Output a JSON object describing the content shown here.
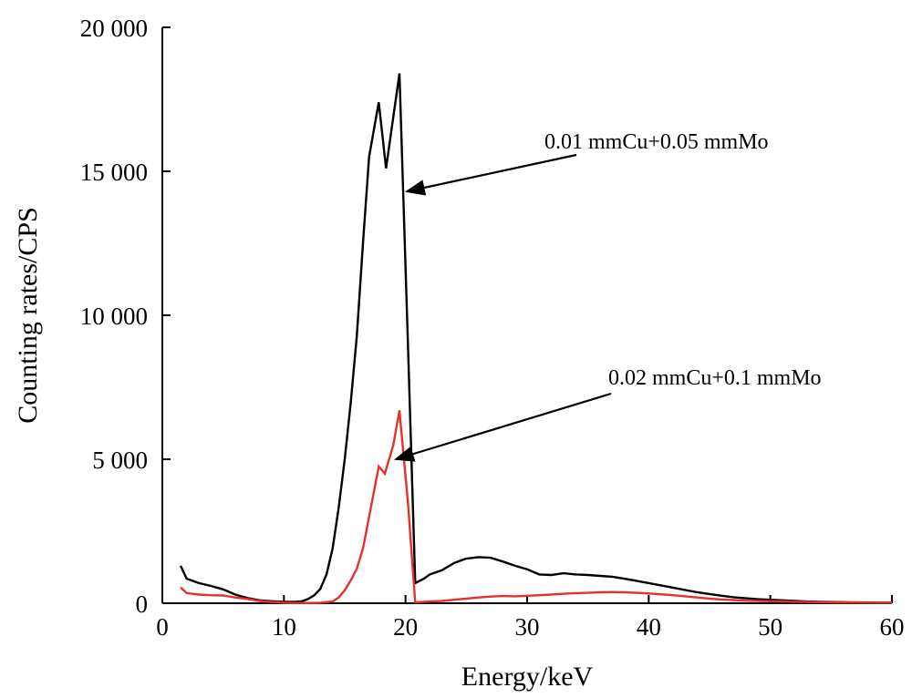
{
  "chart_data": {
    "type": "line",
    "xlabel": "Energy/keV",
    "ylabel": "Counting rates/CPS",
    "xlim": [
      0,
      60
    ],
    "ylim": [
      0,
      20000
    ],
    "x_ticks": [
      0,
      10,
      20,
      30,
      40,
      50,
      60
    ],
    "y_ticks": [
      0,
      5000,
      10000,
      15000,
      20000
    ],
    "x_tick_labels": [
      "0",
      "10",
      "20",
      "30",
      "40",
      "50",
      "60"
    ],
    "y_tick_labels": [
      "0",
      "5 000",
      "10 000",
      "15 000",
      "20 000"
    ],
    "grid": false,
    "series": [
      {
        "color": "#000000",
        "points": [
          [
            1.5,
            1300
          ],
          [
            2,
            850
          ],
          [
            3,
            700
          ],
          [
            4,
            600
          ],
          [
            5,
            480
          ],
          [
            6,
            300
          ],
          [
            7,
            180
          ],
          [
            8,
            100
          ],
          [
            9,
            70
          ],
          [
            10,
            50
          ],
          [
            11,
            50
          ],
          [
            11.5,
            70
          ],
          [
            12,
            150
          ],
          [
            12.5,
            280
          ],
          [
            13,
            500
          ],
          [
            13.5,
            1000
          ],
          [
            14,
            1900
          ],
          [
            14.5,
            3300
          ],
          [
            15,
            5000
          ],
          [
            15.5,
            7000
          ],
          [
            16,
            9300
          ],
          [
            16.5,
            12500
          ],
          [
            17,
            15500
          ],
          [
            17.8,
            17400
          ],
          [
            18.4,
            15100
          ],
          [
            19.5,
            18400
          ],
          [
            20.2,
            9000
          ],
          [
            20.8,
            700
          ],
          [
            21.5,
            850
          ],
          [
            22,
            1000
          ],
          [
            23,
            1150
          ],
          [
            24,
            1400
          ],
          [
            25,
            1550
          ],
          [
            26,
            1600
          ],
          [
            27,
            1580
          ],
          [
            28,
            1450
          ],
          [
            29,
            1300
          ],
          [
            30,
            1180
          ],
          [
            31,
            1000
          ],
          [
            32,
            980
          ],
          [
            33,
            1040
          ],
          [
            34,
            1000
          ],
          [
            35,
            980
          ],
          [
            36,
            950
          ],
          [
            37,
            920
          ],
          [
            38,
            850
          ],
          [
            39,
            780
          ],
          [
            40,
            700
          ],
          [
            41,
            620
          ],
          [
            42,
            540
          ],
          [
            43,
            460
          ],
          [
            44,
            380
          ],
          [
            45,
            320
          ],
          [
            46,
            260
          ],
          [
            47,
            210
          ],
          [
            48,
            170
          ],
          [
            49,
            140
          ],
          [
            50,
            120
          ],
          [
            51,
            100
          ],
          [
            52,
            80
          ],
          [
            53,
            60
          ],
          [
            55,
            40
          ],
          [
            57,
            30
          ],
          [
            60,
            20
          ]
        ]
      },
      {
        "color": "#e8302a",
        "points": [
          [
            1.5,
            550
          ],
          [
            2,
            350
          ],
          [
            3,
            300
          ],
          [
            4,
            280
          ],
          [
            5,
            270
          ],
          [
            6,
            200
          ],
          [
            7,
            150
          ],
          [
            8,
            80
          ],
          [
            9,
            40
          ],
          [
            10,
            20
          ],
          [
            11,
            10
          ],
          [
            12,
            10
          ],
          [
            13,
            20
          ],
          [
            14,
            60
          ],
          [
            14.5,
            200
          ],
          [
            15,
            450
          ],
          [
            15.5,
            800
          ],
          [
            16,
            1200
          ],
          [
            16.5,
            1900
          ],
          [
            17,
            3000
          ],
          [
            17.8,
            4750
          ],
          [
            18.3,
            4500
          ],
          [
            19,
            5500
          ],
          [
            19.5,
            6700
          ],
          [
            20.2,
            3500
          ],
          [
            20.8,
            30
          ],
          [
            22,
            60
          ],
          [
            23,
            80
          ],
          [
            24,
            120
          ],
          [
            25,
            160
          ],
          [
            26,
            200
          ],
          [
            27,
            230
          ],
          [
            28,
            250
          ],
          [
            29,
            240
          ],
          [
            30,
            260
          ],
          [
            31,
            280
          ],
          [
            32,
            300
          ],
          [
            33,
            330
          ],
          [
            34,
            350
          ],
          [
            35,
            360
          ],
          [
            36,
            380
          ],
          [
            37,
            390
          ],
          [
            38,
            380
          ],
          [
            39,
            360
          ],
          [
            40,
            340
          ],
          [
            41,
            310
          ],
          [
            42,
            280
          ],
          [
            43,
            240
          ],
          [
            44,
            200
          ],
          [
            45,
            160
          ],
          [
            46,
            130
          ],
          [
            47,
            110
          ],
          [
            48,
            90
          ],
          [
            50,
            70
          ],
          [
            52,
            50
          ],
          [
            55,
            30
          ],
          [
            60,
            20
          ]
        ]
      }
    ],
    "annotations": [
      {
        "text": "0.01 mmCu+0.05 mmMo",
        "points_to": [
          20.1,
          14300
        ]
      },
      {
        "text": "0.02 mmCu+0.1 mmMo",
        "points_to": [
          19.2,
          5000
        ]
      }
    ]
  }
}
